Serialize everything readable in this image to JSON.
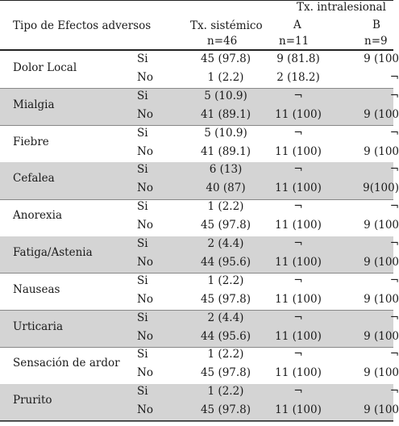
{
  "header": {
    "col_effect": "Tipo de Efectos adversos",
    "col_systemic": "Tx. sistémico",
    "col_systemic_n": "n=46",
    "col_intralesional": "Tx. intralesional",
    "col_a": "A",
    "col_a_n": "n=11",
    "col_b": "B",
    "col_b_n": "n=9"
  },
  "rows": [
    {
      "effect": "Dolor Local",
      "si": {
        "label": "Si",
        "sys": "45 (97.8)",
        "a": "9 (81.8)",
        "b": "9 (100"
      },
      "no": {
        "label": "No",
        "sys": "1 (2.2)",
        "a": "2 (18.2)",
        "b": "¬"
      }
    },
    {
      "effect": "Mialgia",
      "si": {
        "label": "Si",
        "sys": "5 (10.9)",
        "a": "¬",
        "b": "¬"
      },
      "no": {
        "label": "No",
        "sys": "41 (89.1)",
        "a": "11 (100)",
        "b": "9 (100"
      }
    },
    {
      "effect": "Fiebre",
      "si": {
        "label": "Si",
        "sys": "5 (10.9)",
        "a": "¬",
        "b": "¬"
      },
      "no": {
        "label": "No",
        "sys": "41 (89.1)",
        "a": "11 (100)",
        "b": "9 (100"
      }
    },
    {
      "effect": "Cefalea",
      "si": {
        "label": "Si",
        "sys": "6 (13)",
        "a": "¬",
        "b": "¬"
      },
      "no": {
        "label": "No",
        "sys": "40 (87)",
        "a": "11 (100)",
        "b": "9(100)"
      }
    },
    {
      "effect": "Anorexia",
      "si": {
        "label": "Si",
        "sys": "1 (2.2)",
        "a": "¬",
        "b": "¬"
      },
      "no": {
        "label": "No",
        "sys": "45 (97.8)",
        "a": "11 (100)",
        "b": "9 (100"
      }
    },
    {
      "effect": "Fatiga/Astenia",
      "si": {
        "label": "Si",
        "sys": "2 (4.4)",
        "a": "¬",
        "b": "¬"
      },
      "no": {
        "label": "No",
        "sys": "44 (95.6)",
        "a": "11 (100)",
        "b": "9 (100"
      }
    },
    {
      "effect": "Nauseas",
      "si": {
        "label": "Si",
        "sys": "1 (2.2)",
        "a": "¬",
        "b": "¬"
      },
      "no": {
        "label": "No",
        "sys": "45 (97.8)",
        "a": "11 (100)",
        "b": "9 (100"
      }
    },
    {
      "effect": "Urticaria",
      "si": {
        "label": "Si",
        "sys": "2 (4.4)",
        "a": "¬",
        "b": "¬"
      },
      "no": {
        "label": "No",
        "sys": "44 (95.6)",
        "a": "11 (100)",
        "b": "9 (100"
      }
    },
    {
      "effect": "Sensación de ardor",
      "si": {
        "label": "Si",
        "sys": "1 (2.2)",
        "a": "¬",
        "b": "¬"
      },
      "no": {
        "label": "No",
        "sys": "45 (97.8)",
        "a": "11 (100)",
        "b": "9 (100"
      }
    },
    {
      "effect": "Prurito",
      "si": {
        "label": "Si",
        "sys": "1 (2.2)",
        "a": "¬",
        "b": "¬"
      },
      "no": {
        "label": "No",
        "sys": "45 (97.8)",
        "a": "11 (100)",
        "b": "9 (100"
      }
    }
  ],
  "style": {
    "shade_color": "#d4d4d4",
    "rule_color": "#222222"
  }
}
